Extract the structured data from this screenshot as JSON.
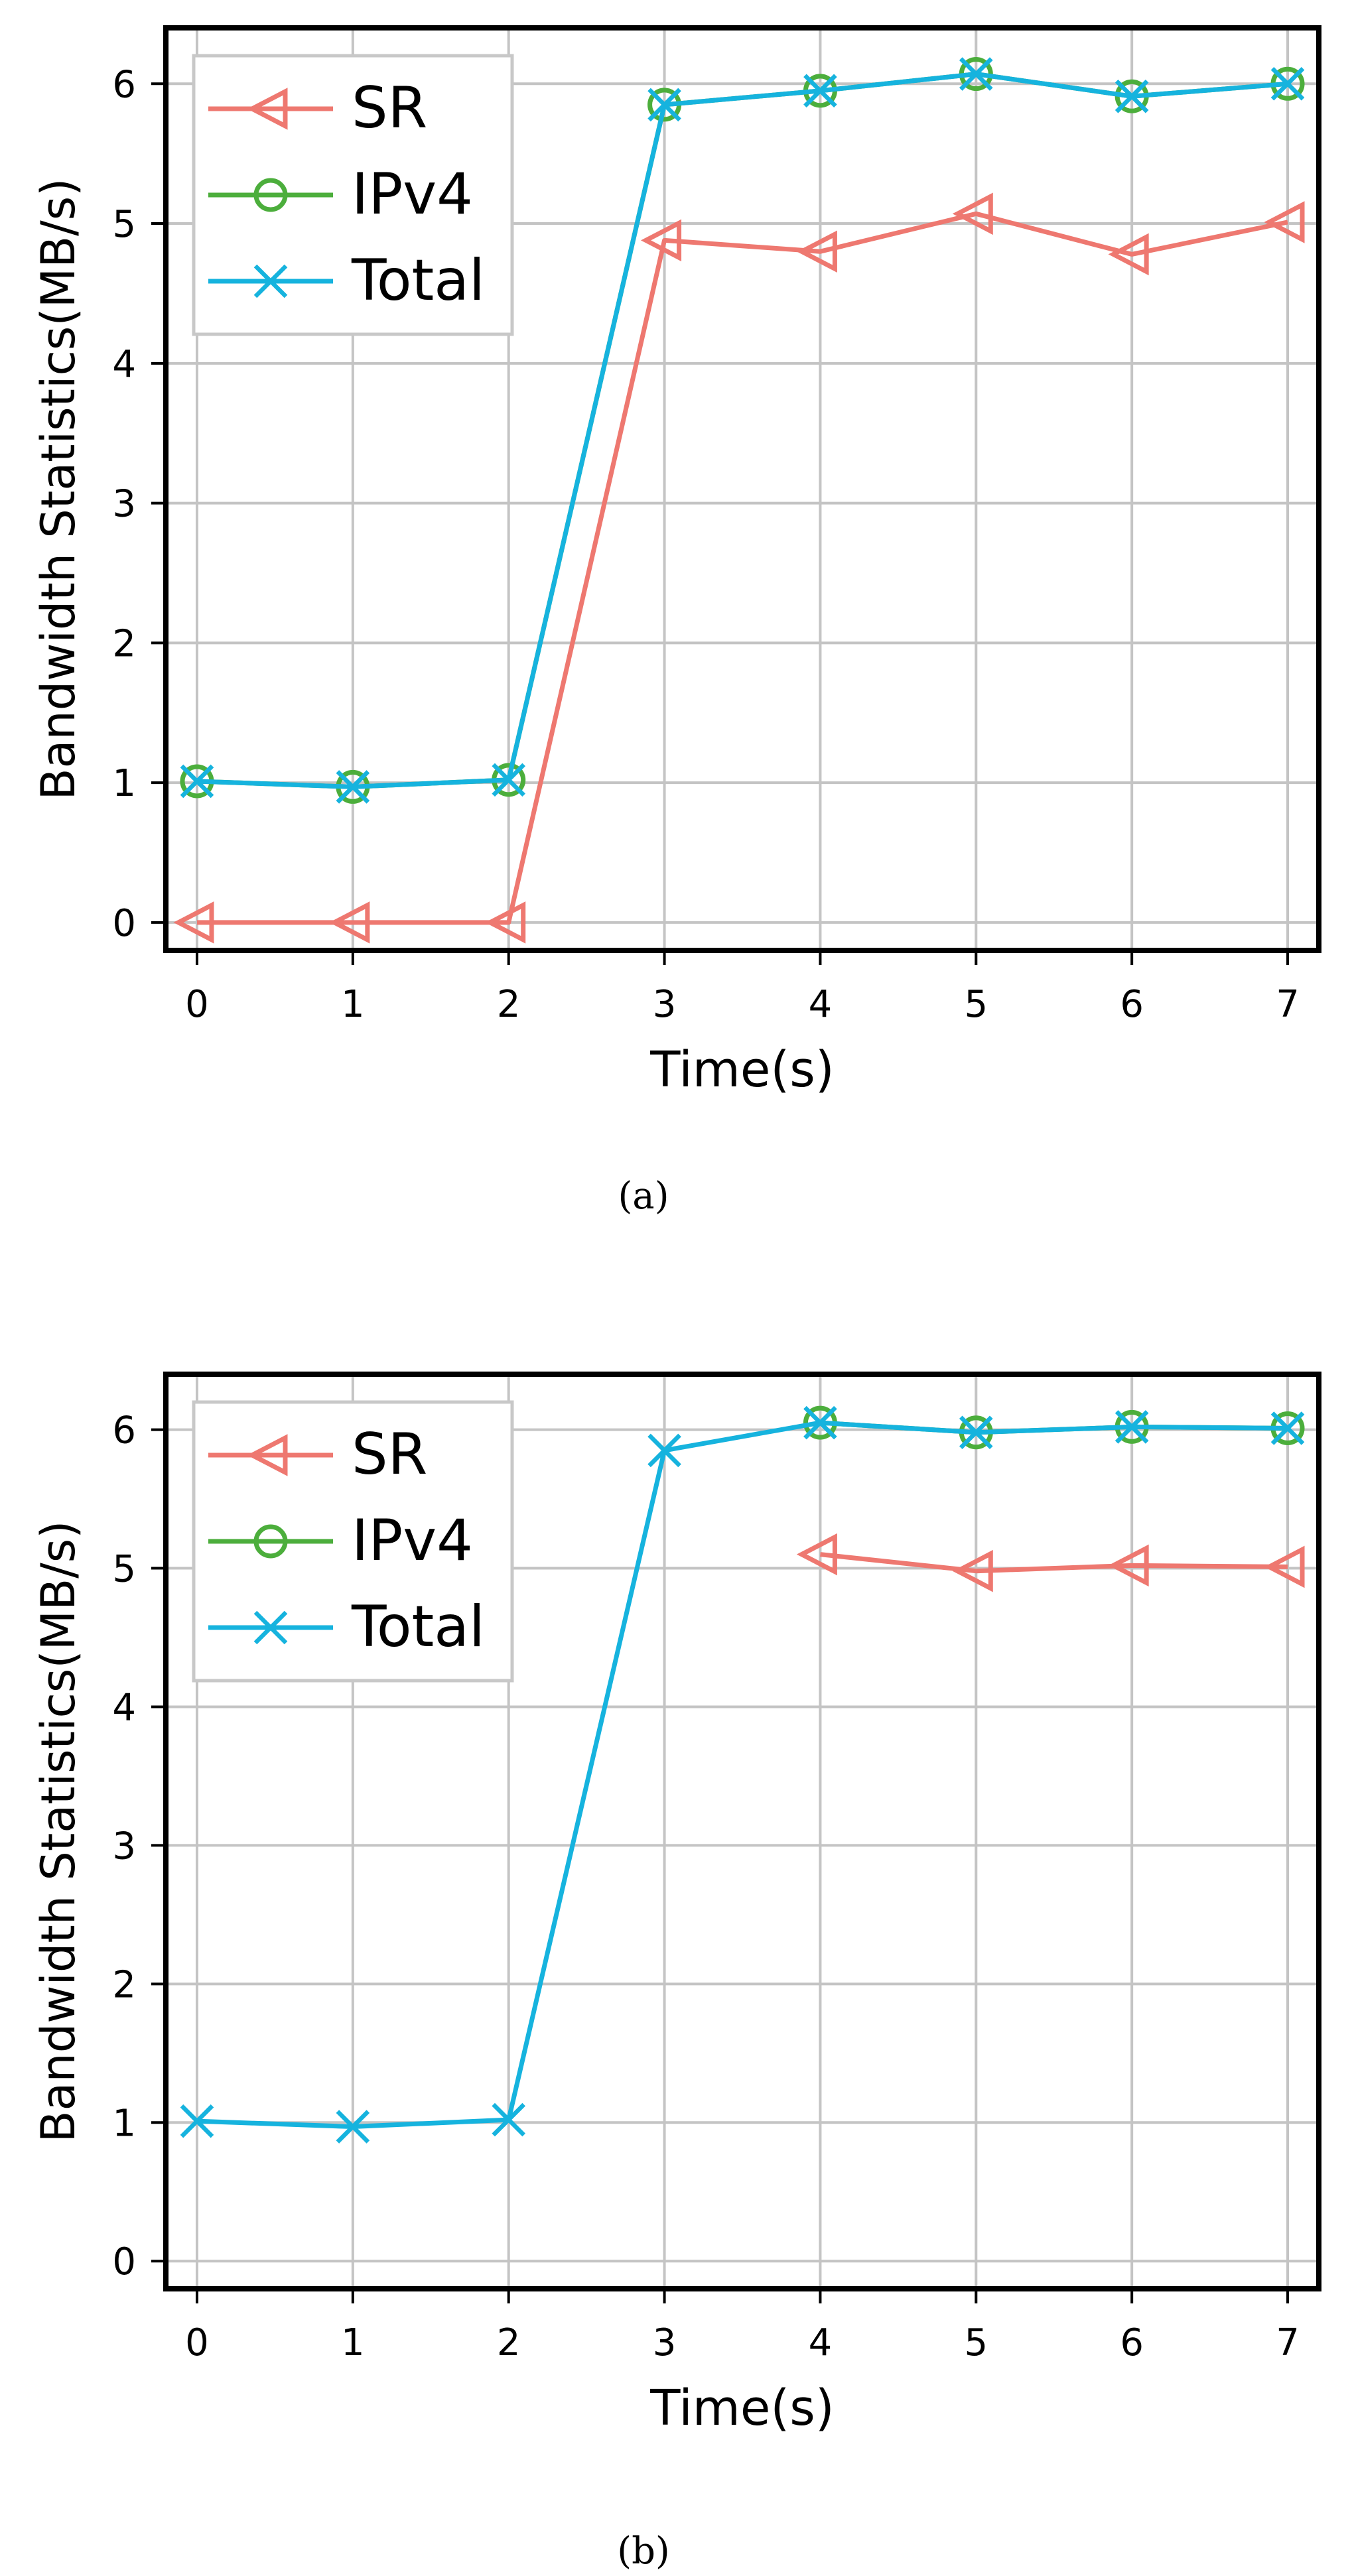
{
  "colors": {
    "sr": "#ee7870",
    "ipv4": "#4cae3c",
    "total": "#16b3de",
    "grid": "#c4c4c4",
    "axis": "#000000",
    "legend_border": "#c8c8c8"
  },
  "chart_data": [
    {
      "type": "line",
      "panel": "a",
      "caption": "(a)",
      "xlabel": "Time(s)",
      "ylabel": "Bandwidth Statistics(MB/s)",
      "xlim": [
        -0.2,
        7.2
      ],
      "ylim": [
        -0.2,
        6.4
      ],
      "xticks": [
        0,
        1,
        2,
        3,
        4,
        5,
        6,
        7
      ],
      "yticks": [
        0,
        1,
        2,
        3,
        4,
        5,
        6
      ],
      "grid": true,
      "legend_position": "top-left",
      "series": [
        {
          "key": "sr",
          "name": "SR",
          "marker": "triangle-left",
          "x": [
            0,
            1,
            2,
            3,
            4,
            5,
            6,
            7
          ],
          "values": [
            0.0,
            0.0,
            0.0,
            4.88,
            4.8,
            5.07,
            4.78,
            5.01
          ]
        },
        {
          "key": "ipv4",
          "name": "IPv4",
          "marker": "circle",
          "x": [
            0,
            1,
            2,
            3,
            4,
            5,
            6,
            7
          ],
          "values": [
            1.01,
            0.97,
            1.02,
            5.85,
            5.95,
            6.07,
            5.91,
            6.0
          ]
        },
        {
          "key": "total",
          "name": "Total",
          "marker": "x",
          "x": [
            0,
            1,
            2,
            3,
            4,
            5,
            6,
            7
          ],
          "values": [
            1.01,
            0.97,
            1.02,
            5.85,
            5.95,
            6.07,
            5.91,
            6.0
          ]
        }
      ]
    },
    {
      "type": "line",
      "panel": "b",
      "caption": "(b)",
      "xlabel": "Time(s)",
      "ylabel": "Bandwidth Statistics(MB/s)",
      "xlim": [
        -0.2,
        7.2
      ],
      "ylim": [
        -0.2,
        6.4
      ],
      "xticks": [
        0,
        1,
        2,
        3,
        4,
        5,
        6,
        7
      ],
      "yticks": [
        0,
        1,
        2,
        3,
        4,
        5,
        6
      ],
      "grid": true,
      "legend_position": "top-left",
      "series": [
        {
          "key": "sr",
          "name": "SR",
          "marker": "triangle-left",
          "x": [
            4,
            5,
            6,
            7
          ],
          "values": [
            5.1,
            4.98,
            5.02,
            5.01
          ]
        },
        {
          "key": "ipv4",
          "name": "IPv4",
          "marker": "circle",
          "x": [
            4,
            5,
            6,
            7
          ],
          "values": [
            6.05,
            5.98,
            6.02,
            6.01
          ]
        },
        {
          "key": "total",
          "name": "Total",
          "marker": "x",
          "x": [
            0,
            1,
            2,
            3,
            4,
            5,
            6,
            7
          ],
          "values": [
            1.01,
            0.97,
            1.02,
            5.85,
            6.05,
            5.98,
            6.02,
            6.01
          ]
        }
      ]
    }
  ]
}
